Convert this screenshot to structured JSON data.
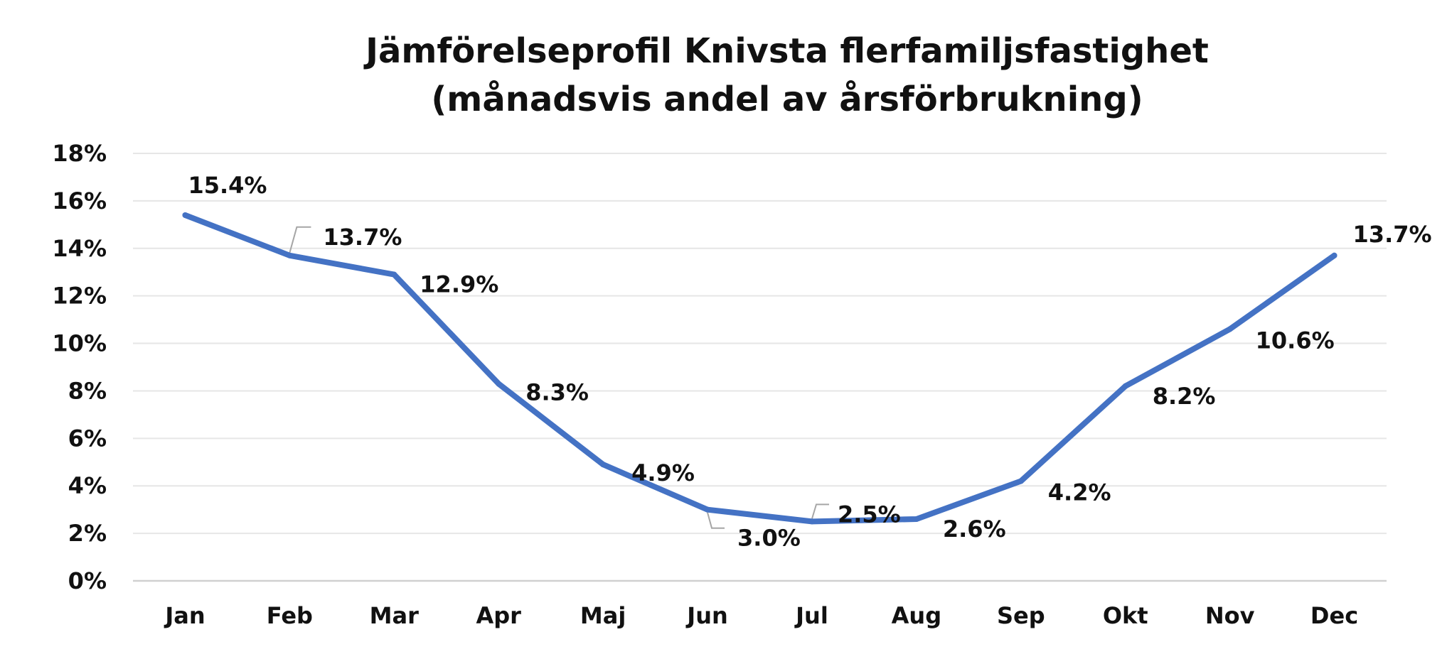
{
  "chart_data": {
    "type": "line",
    "title": "Jämförelseprofil Knivsta flerfamiljsfastighet",
    "subtitle": "(månadsvis andel av årsförbrukning)",
    "categories": [
      "Jan",
      "Feb",
      "Mar",
      "Apr",
      "Maj",
      "Jun",
      "Jul",
      "Aug",
      "Sep",
      "Okt",
      "Nov",
      "Dec"
    ],
    "series": [
      {
        "values": [
          15.4,
          13.7,
          12.9,
          8.3,
          4.9,
          3.0,
          2.5,
          2.6,
          4.2,
          8.2,
          10.6,
          13.7
        ],
        "labels": [
          "15.4%",
          "13.7%",
          "12.9%",
          "8.3%",
          "4.9%",
          "3.0%",
          "2.5%",
          "2.6%",
          "4.2%",
          "8.2%",
          "10.6%",
          "13.7%"
        ],
        "color": "#4472C4"
      }
    ],
    "yticks": [
      "0%",
      "2%",
      "4%",
      "6%",
      "8%",
      "10%",
      "12%",
      "14%",
      "16%",
      "18%"
    ],
    "ylim": [
      0,
      18
    ],
    "xlabel": "",
    "ylabel": "",
    "grid": true,
    "legend": "none",
    "colors": {
      "line": "#4472C4",
      "grid": "#e6e6e6",
      "axis": "#d0d0d0",
      "leader": "#a6a6a6",
      "text": "#111111"
    }
  }
}
